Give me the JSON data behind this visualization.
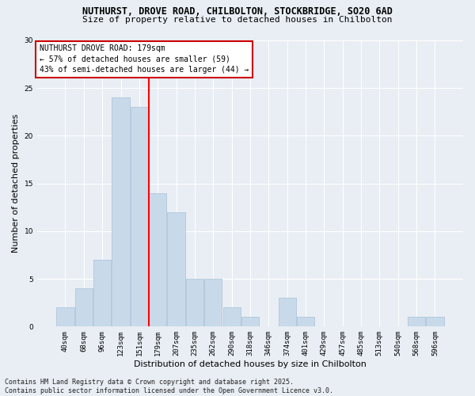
{
  "title_line1": "NUTHURST, DROVE ROAD, CHILBOLTON, STOCKBRIDGE, SO20 6AD",
  "title_line2": "Size of property relative to detached houses in Chilbolton",
  "categories": [
    "40sqm",
    "68sqm",
    "96sqm",
    "123sqm",
    "151sqm",
    "179sqm",
    "207sqm",
    "235sqm",
    "262sqm",
    "290sqm",
    "318sqm",
    "346sqm",
    "374sqm",
    "401sqm",
    "429sqm",
    "457sqm",
    "485sqm",
    "513sqm",
    "540sqm",
    "568sqm",
    "596sqm"
  ],
  "values": [
    2,
    4,
    7,
    24,
    23,
    14,
    12,
    5,
    5,
    2,
    1,
    0,
    3,
    1,
    0,
    0,
    0,
    0,
    0,
    1,
    1
  ],
  "bar_color": "#c8daea",
  "bar_edge_color": "#a8c0d8",
  "vline_color": "red",
  "vline_index": 5,
  "xlabel": "Distribution of detached houses by size in Chilbolton",
  "ylabel": "Number of detached properties",
  "ylim": [
    0,
    30
  ],
  "yticks": [
    0,
    5,
    10,
    15,
    20,
    25,
    30
  ],
  "annotation_title": "NUTHURST DROVE ROAD: 179sqm",
  "annotation_line2": "← 57% of detached houses are smaller (59)",
  "annotation_line3": "43% of semi-detached houses are larger (44) →",
  "annotation_box_color": "#ffffff",
  "annotation_box_edge": "#cc0000",
  "footer_line1": "Contains HM Land Registry data © Crown copyright and database right 2025.",
  "footer_line2": "Contains public sector information licensed under the Open Government Licence v3.0.",
  "background_color": "#e8eef4",
  "grid_color": "#ffffff",
  "title1_fontsize": 8.5,
  "title2_fontsize": 8.0,
  "tick_fontsize": 6.5,
  "axis_label_fontsize": 8.0,
  "annotation_fontsize": 7.0,
  "footer_fontsize": 6.0
}
